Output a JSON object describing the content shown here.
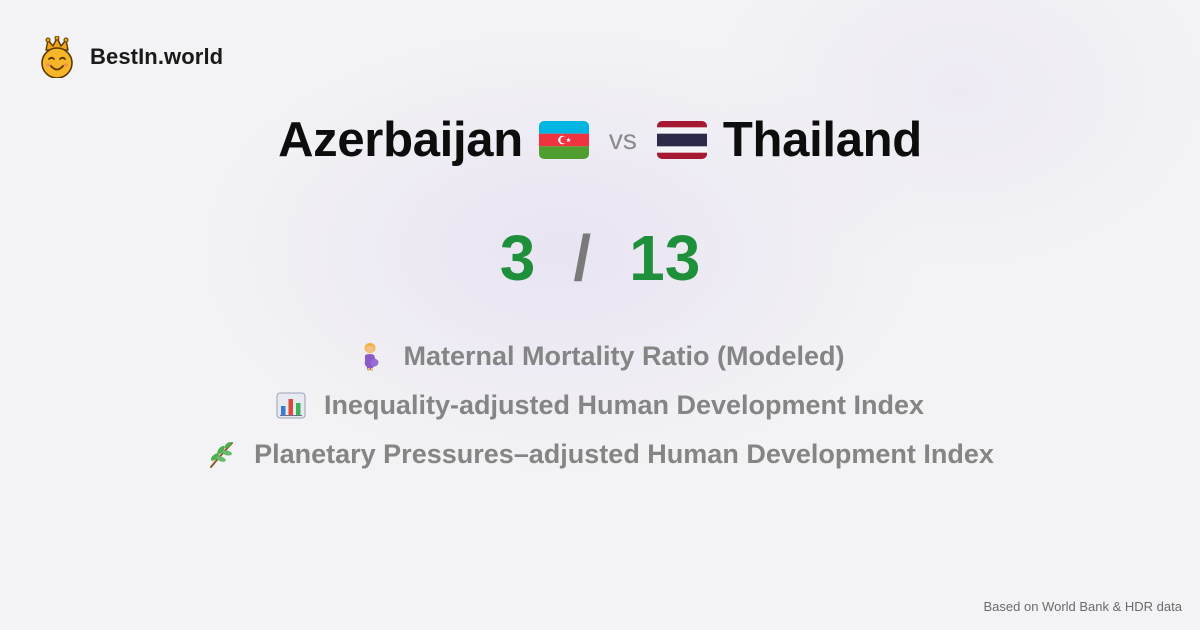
{
  "brand": {
    "name": "BestIn.world",
    "logo_icon": "crowned-smiley-icon"
  },
  "comparison": {
    "left_country": "Azerbaijan",
    "left_flag_icon": "azerbaijan-flag-icon",
    "vs_label": "vs",
    "right_country": "Thailand",
    "right_flag_icon": "thailand-flag-icon"
  },
  "score": {
    "left": "3",
    "separator": "/",
    "right": "13",
    "color": "#1e8f3a"
  },
  "metrics": [
    {
      "icon": "pregnant-woman-icon",
      "label": "Maternal Mortality Ratio (Modeled)"
    },
    {
      "icon": "bar-chart-icon",
      "label": "Inequality-adjusted Human Development Index"
    },
    {
      "icon": "herb-icon",
      "label": "Planetary Pressures–adjusted Human Development Index"
    }
  ],
  "footer": {
    "source": "Based on World Bank & HDR data"
  },
  "colors": {
    "background": "#f3f3f5",
    "title": "#0d0d0d",
    "metric_text": "#858585",
    "azerbaijan_blue": "#00b5e2",
    "azerbaijan_red": "#ef3340",
    "azerbaijan_green": "#509e2f",
    "thailand_red": "#a51931",
    "thailand_blue": "#2d2a4a"
  }
}
